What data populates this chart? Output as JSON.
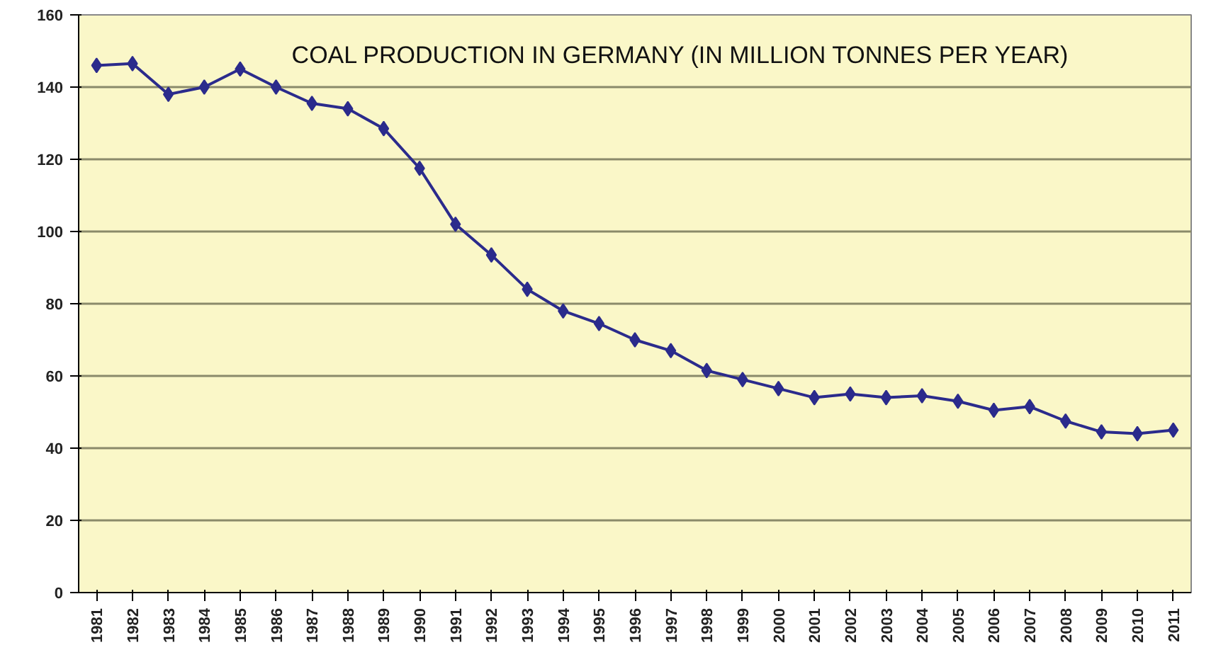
{
  "chart_data": {
    "type": "line",
    "title": "COAL PRODUCTION IN GERMANY (IN MILLION TONNES PER YEAR)",
    "categories": [
      "1981",
      "1982",
      "1983",
      "1984",
      "1985",
      "1986",
      "1987",
      "1988",
      "1989",
      "1990",
      "1991",
      "1992",
      "1993",
      "1994",
      "1995",
      "1996",
      "1997",
      "1998",
      "1999",
      "2000",
      "2001",
      "2002",
      "2003",
      "2004",
      "2005",
      "2006",
      "2007",
      "2008",
      "2009",
      "2010",
      "2011"
    ],
    "series": [
      {
        "color": "#2b2b8c",
        "values": [
          146,
          146.5,
          138,
          140,
          145,
          140,
          135.5,
          134,
          128.5,
          117.5,
          102,
          93.5,
          84,
          78,
          74.5,
          70,
          67,
          61.5,
          59,
          56.5,
          54,
          55,
          54,
          54.5,
          53,
          50.5,
          51.5,
          47.5,
          44.5,
          44,
          45
        ]
      }
    ],
    "ylim": [
      0,
      160
    ],
    "yticks": [
      0,
      20,
      40,
      60,
      80,
      100,
      120,
      140,
      160
    ],
    "grid": "y",
    "marker": "diamond",
    "line_style": "solid"
  }
}
